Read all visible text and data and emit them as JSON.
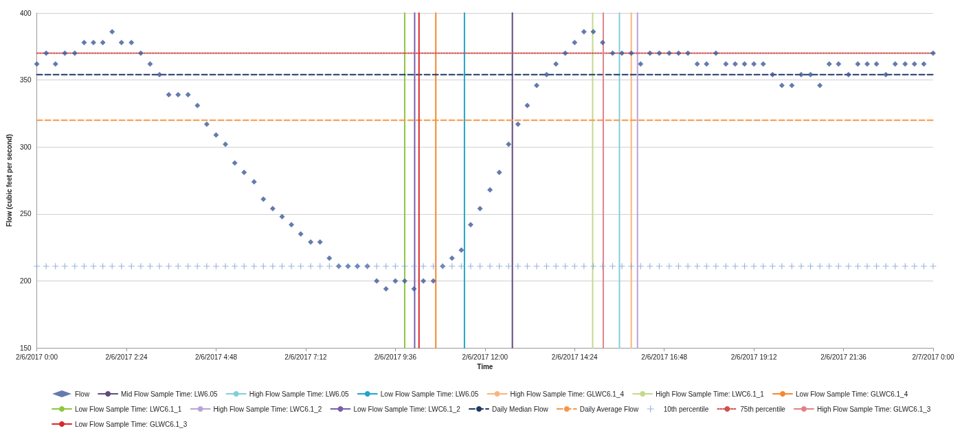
{
  "chart_data": {
    "type": "scatter",
    "xlabel": "Time",
    "ylabel": "Flow (cubic feet per second)",
    "x": [
      "2017-02-06T00:00",
      "2017-02-06T00:15",
      "2017-02-06T00:30",
      "2017-02-06T00:45",
      "2017-02-06T01:01",
      "2017-02-06T01:16",
      "2017-02-06T01:31",
      "2017-02-06T01:46",
      "2017-02-06T02:01",
      "2017-02-06T02:16",
      "2017-02-06T02:32",
      "2017-02-06T02:47",
      "2017-02-06T03:02",
      "2017-02-06T03:17",
      "2017-02-06T03:32",
      "2017-02-06T03:47",
      "2017-02-06T04:03",
      "2017-02-06T04:18",
      "2017-02-06T04:33",
      "2017-02-06T04:48",
      "2017-02-06T05:03",
      "2017-02-06T05:18",
      "2017-02-06T05:33",
      "2017-02-06T05:49",
      "2017-02-06T06:04",
      "2017-02-06T06:19",
      "2017-02-06T06:34",
      "2017-02-06T06:49",
      "2017-02-06T07:04",
      "2017-02-06T07:20",
      "2017-02-06T07:35",
      "2017-02-06T07:50",
      "2017-02-06T08:05",
      "2017-02-06T08:20",
      "2017-02-06T08:35",
      "2017-02-06T08:51",
      "2017-02-06T09:06",
      "2017-02-06T09:21",
      "2017-02-06T09:36",
      "2017-02-06T09:51",
      "2017-02-06T10:06",
      "2017-02-06T10:21",
      "2017-02-06T10:37",
      "2017-02-06T10:52",
      "2017-02-06T11:07",
      "2017-02-06T11:22",
      "2017-02-06T11:37",
      "2017-02-06T11:52",
      "2017-02-06T12:08",
      "2017-02-06T12:23",
      "2017-02-06T12:38",
      "2017-02-06T12:53",
      "2017-02-06T13:08",
      "2017-02-06T13:23",
      "2017-02-06T13:39",
      "2017-02-06T13:54",
      "2017-02-06T14:09",
      "2017-02-06T14:24",
      "2017-02-06T14:39",
      "2017-02-06T14:54",
      "2017-02-06T15:09",
      "2017-02-06T15:25",
      "2017-02-06T15:40",
      "2017-02-06T15:55",
      "2017-02-06T16:10",
      "2017-02-06T16:25",
      "2017-02-06T16:40",
      "2017-02-06T16:56",
      "2017-02-06T17:11",
      "2017-02-06T17:26",
      "2017-02-06T17:41",
      "2017-02-06T17:56",
      "2017-02-06T18:11",
      "2017-02-06T18:27",
      "2017-02-06T18:42",
      "2017-02-06T18:57",
      "2017-02-06T19:12",
      "2017-02-06T19:27",
      "2017-02-06T19:42",
      "2017-02-06T19:57",
      "2017-02-06T20:13",
      "2017-02-06T20:28",
      "2017-02-06T20:43",
      "2017-02-06T20:58",
      "2017-02-06T21:13",
      "2017-02-06T21:28",
      "2017-02-06T21:44",
      "2017-02-06T21:59",
      "2017-02-06T22:14",
      "2017-02-06T22:29",
      "2017-02-06T22:44",
      "2017-02-06T22:59",
      "2017-02-06T23:15",
      "2017-02-06T23:30",
      "2017-02-06T23:45",
      "2017-02-07T00:00"
    ],
    "xlim": [
      "2017-02-06T00:00",
      "2017-02-07T00:00"
    ],
    "xticks": [
      {
        "value": "2017-02-06T00:00",
        "label": "2/6/2017 0:00"
      },
      {
        "value": "2017-02-06T02:24",
        "label": "2/6/2017 2:24"
      },
      {
        "value": "2017-02-06T04:48",
        "label": "2/6/2017 4:48"
      },
      {
        "value": "2017-02-06T07:12",
        "label": "2/6/2017 7:12"
      },
      {
        "value": "2017-02-06T09:36",
        "label": "2/6/2017 9:36"
      },
      {
        "value": "2017-02-06T12:00",
        "label": "2/6/2017 12:00"
      },
      {
        "value": "2017-02-06T14:24",
        "label": "2/6/2017 14:24"
      },
      {
        "value": "2017-02-06T16:48",
        "label": "2/6/2017 16:48"
      },
      {
        "value": "2017-02-06T19:12",
        "label": "2/6/2017 19:12"
      },
      {
        "value": "2017-02-06T21:36",
        "label": "2/6/2017 21:36"
      },
      {
        "value": "2017-02-07T00:00",
        "label": "2/7/2017 0:00"
      }
    ],
    "ylim": [
      150,
      400
    ],
    "yticks": [
      150,
      200,
      250,
      300,
      350,
      400
    ],
    "grid": "y",
    "legend": "bottom",
    "series": [
      {
        "name": "Flow",
        "marker": "diamond",
        "color": "#3d5a9a",
        "values": [
          362,
          370,
          362,
          370,
          370,
          378,
          378,
          378,
          386,
          378,
          378,
          370,
          362,
          354,
          339,
          339,
          339,
          331,
          317,
          309,
          302,
          288,
          281,
          274,
          261,
          254,
          248,
          242,
          235,
          229,
          229,
          217,
          211,
          211,
          211,
          211,
          200,
          194,
          200,
          200,
          194,
          200,
          200,
          211,
          217,
          223,
          242,
          254,
          268,
          281,
          302,
          317,
          331,
          346,
          354,
          362,
          370,
          378,
          386,
          386,
          378,
          370,
          370,
          370,
          362,
          370,
          370,
          370,
          370,
          370,
          362,
          362,
          370,
          362,
          362,
          362,
          362,
          362,
          354,
          346,
          346,
          354,
          354,
          346,
          362,
          362,
          354,
          362,
          362,
          362,
          354,
          362,
          362,
          362,
          362,
          370
        ]
      },
      {
        "name": "Mid Flow Sample Time: LW6.05",
        "type": "line",
        "marker": "none",
        "color": "#604a7b",
        "x": [
          "2017-02-06T12:44",
          "2017-02-06T12:44"
        ],
        "values": [
          150,
          400
        ]
      },
      {
        "name": "High Flow Sample Time: LW6.05",
        "type": "line",
        "marker": "none",
        "color": "#7fcfdc",
        "x": [
          "2017-02-06T15:36",
          "2017-02-06T15:36"
        ],
        "values": [
          150,
          400
        ]
      },
      {
        "name": "Low Flow Sample Time: LW6.05",
        "type": "line",
        "marker": "none",
        "color": "#1fa5c8",
        "x": [
          "2017-02-06T11:27",
          "2017-02-06T11:27"
        ],
        "values": [
          150,
          400
        ]
      },
      {
        "name": "High Flow Sample Time: GLWC6.1_4",
        "type": "line",
        "marker": "none",
        "color": "#fab57a",
        "x": [
          "2017-02-06T15:55",
          "2017-02-06T15:55"
        ],
        "values": [
          150,
          400
        ]
      },
      {
        "name": "High Flow Sample Time: LWC6.1_1",
        "type": "line",
        "marker": "none",
        "color": "#c3d98b",
        "x": [
          "2017-02-06T14:53",
          "2017-02-06T14:53"
        ],
        "values": [
          150,
          400
        ]
      },
      {
        "name": "Low Flow Sample Time: GLWC6.1_4",
        "type": "line",
        "marker": "none",
        "color": "#f5872d",
        "x": [
          "2017-02-06T10:41",
          "2017-02-06T10:41"
        ],
        "values": [
          150,
          400
        ]
      },
      {
        "name": "Low Flow Sample Time: LWC6.1_1",
        "type": "line",
        "marker": "none",
        "color": "#8dc63f",
        "x": [
          "2017-02-06T09:51",
          "2017-02-06T09:51"
        ],
        "values": [
          150,
          400
        ]
      },
      {
        "name": "High Flow Sample Time: LWC6.1_2",
        "type": "line",
        "marker": "none",
        "color": "#b9a3d6",
        "x": [
          "2017-02-06T16:05",
          "2017-02-06T16:05"
        ],
        "values": [
          150,
          400
        ]
      },
      {
        "name": "Low Flow Sample Time: LWC6.1_2",
        "type": "line",
        "marker": "none",
        "color": "#7a5ea8",
        "x": [
          "2017-02-06T10:07",
          "2017-02-06T10:07"
        ],
        "values": [
          150,
          400
        ]
      },
      {
        "name": "Daily Median Flow",
        "type": "line",
        "marker": "none",
        "line_style": "dashed",
        "color": "#1f3864",
        "x": [
          "2017-02-06T00:00",
          "2017-02-07T00:00"
        ],
        "values": [
          354,
          354
        ]
      },
      {
        "name": "Daily Average Flow",
        "type": "line",
        "marker": "none",
        "line_style": "dashed",
        "color": "#f79646",
        "x": [
          "2017-02-06T00:00",
          "2017-02-07T00:00"
        ],
        "values": [
          320,
          320
        ]
      },
      {
        "name": "10th percentile",
        "marker": "cross",
        "color": "#7f9fd0",
        "values": [
          211,
          211,
          211,
          211,
          211,
          211,
          211,
          211,
          211,
          211,
          211,
          211,
          211,
          211,
          211,
          211,
          211,
          211,
          211,
          211,
          211,
          211,
          211,
          211,
          211,
          211,
          211,
          211,
          211,
          211,
          211,
          211,
          211,
          211,
          211,
          211,
          211,
          211,
          211,
          211,
          211,
          211,
          211,
          211,
          211,
          211,
          211,
          211,
          211,
          211,
          211,
          211,
          211,
          211,
          211,
          211,
          211,
          211,
          211,
          211,
          211,
          211,
          211,
          211,
          211,
          211,
          211,
          211,
          211,
          211,
          211,
          211,
          211,
          211,
          211,
          211,
          211,
          211,
          211,
          211,
          211,
          211,
          211,
          211,
          211,
          211,
          211,
          211,
          211,
          211,
          211,
          211,
          211,
          211,
          211,
          211
        ]
      },
      {
        "name": "75th percentile",
        "type": "line",
        "marker": "none",
        "line_style": "dotted",
        "color": "#d0504d",
        "x": [
          "2017-02-06T00:00",
          "2017-02-07T00:00"
        ],
        "values": [
          370,
          370
        ]
      },
      {
        "name": "High Flow Sample Time: GLWC6.1_3",
        "type": "line",
        "marker": "none",
        "color": "#e0818a",
        "x": [
          "2017-02-06T15:10",
          "2017-02-06T15:10"
        ],
        "values": [
          150,
          400
        ]
      },
      {
        "name": "Low Flow Sample Time: GLWC6.1_3",
        "type": "line",
        "marker": "none",
        "color": "#d9272e",
        "x": [
          "2017-02-06T10:14",
          "2017-02-06T10:14"
        ],
        "values": [
          150,
          400
        ]
      }
    ]
  }
}
